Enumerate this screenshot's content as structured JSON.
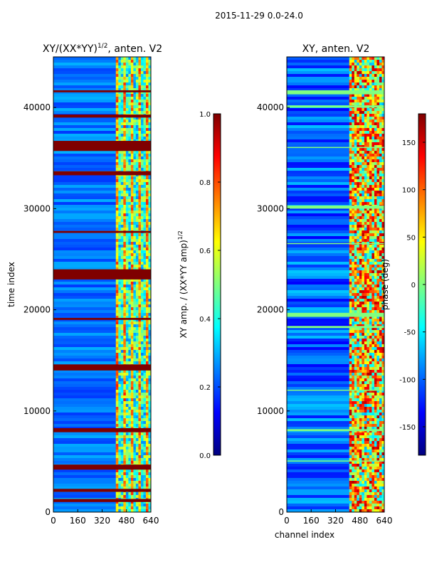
{
  "figure_title": "2015-11-29 0.0-24.0",
  "colormap": [
    "#00007f",
    "#0000ff",
    "#007fff",
    "#00ffff",
    "#7fff7f",
    "#ffff00",
    "#ff7f00",
    "#ff0000",
    "#7f0000"
  ],
  "chart_data": [
    {
      "type": "heatmap",
      "title_main": "XY/(XX*YY)",
      "title_exp": "1/2",
      "title_suffix": ", anten. V2",
      "xlabel": "",
      "ylabel": "time index",
      "xlim": [
        0,
        640
      ],
      "ylim": [
        0,
        45000
      ],
      "xticks": [
        0,
        160,
        320,
        480,
        640
      ],
      "yticks": [
        0,
        10000,
        20000,
        30000,
        40000
      ],
      "active_channels": [
        410,
        640
      ],
      "colorbar": {
        "label_main": "XY amp. / (XX*YY amp)",
        "label_exp": "1/2",
        "range": [
          0.0,
          1.0
        ],
        "ticks": [
          "0.0",
          "0.2",
          "0.4",
          "0.6",
          "0.8",
          "1.0"
        ]
      },
      "saturated_rows": [
        [
          35700,
          36700
        ],
        [
          33300,
          33700
        ],
        [
          23000,
          24000
        ],
        [
          14000,
          14600
        ],
        [
          7900,
          8300
        ],
        [
          4200,
          4700
        ],
        [
          2000,
          2300
        ],
        [
          1000,
          1300
        ],
        [
          39000,
          39300
        ],
        [
          41500,
          41700
        ],
        [
          27600,
          27800
        ],
        [
          19000,
          19200
        ]
      ]
    },
    {
      "type": "heatmap",
      "title_main": "XY, anten. V2",
      "title_exp": "",
      "title_suffix": "",
      "xlabel": "channel index",
      "ylabel": "",
      "xlim": [
        0,
        640
      ],
      "ylim": [
        0,
        45000
      ],
      "xticks": [
        0,
        160,
        320,
        480,
        640
      ],
      "yticks": [
        0,
        10000,
        20000,
        30000,
        40000
      ],
      "active_channels": [
        410,
        640
      ],
      "colorbar": {
        "label_main": "phase (deg)",
        "label_exp": "",
        "range": [
          -180,
          180
        ],
        "ticks": [
          "-150",
          "-100",
          "-50",
          "0",
          "50",
          "100",
          "150"
        ]
      },
      "band_rows": [
        [
          41300,
          41700
        ],
        [
          40000,
          40200
        ],
        [
          30000,
          30300
        ],
        [
          19300,
          19700
        ],
        [
          18200,
          18400
        ],
        [
          8000,
          8200
        ],
        [
          5000,
          5100
        ],
        [
          36000,
          36100
        ],
        [
          26500,
          26600
        ],
        [
          12000,
          12100
        ]
      ]
    }
  ]
}
